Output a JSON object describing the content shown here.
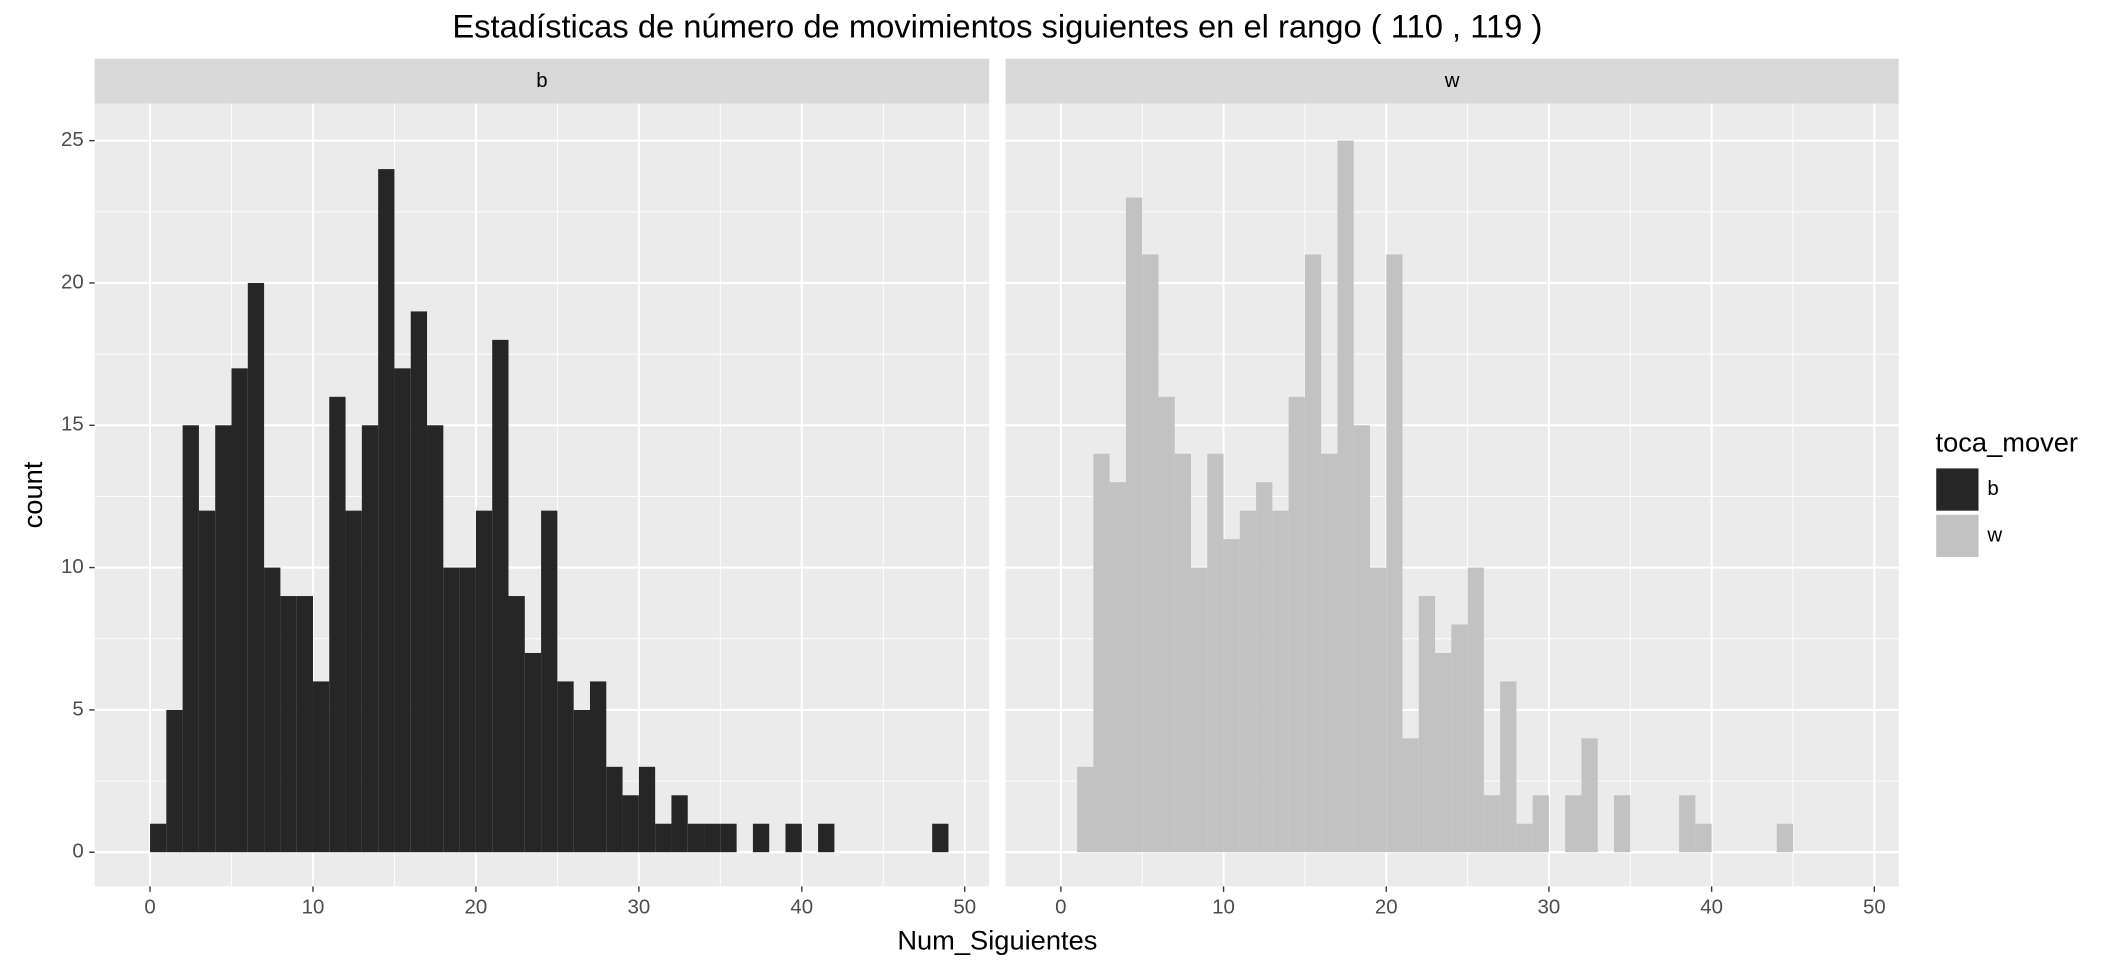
{
  "chart_data": {
    "type": "histogram",
    "title": "Estadísticas de número de movimientos siguientes en el rango ( 110 , 119 )",
    "x_label": "Num_Siguientes",
    "y_label": "count",
    "legend_title": "toca_mover",
    "bins": [
      0,
      1,
      2,
      3,
      4,
      5,
      6,
      7,
      8,
      9,
      10,
      11,
      12,
      13,
      14,
      15,
      16,
      17,
      18,
      19,
      20,
      21,
      22,
      23,
      24,
      25,
      26,
      27,
      28,
      29,
      30,
      31,
      32,
      33,
      34,
      35,
      36,
      37,
      38,
      39,
      40,
      41,
      42,
      43,
      44,
      45,
      46,
      47,
      48,
      49
    ],
    "series": [
      {
        "name": "b",
        "color": "#262626",
        "values": [
          1,
          5,
          15,
          12,
          15,
          17,
          20,
          10,
          9,
          9,
          6,
          16,
          12,
          15,
          24,
          17,
          19,
          15,
          10,
          10,
          12,
          18,
          9,
          7,
          12,
          6,
          5,
          6,
          3,
          2,
          3,
          1,
          2,
          1,
          1,
          1,
          0,
          1,
          0,
          1,
          0,
          1,
          0,
          0,
          0,
          0,
          0,
          0,
          1
        ]
      },
      {
        "name": "w",
        "color": "#c2c2c2",
        "values": [
          0,
          3,
          14,
          13,
          23,
          21,
          16,
          14,
          10,
          14,
          11,
          12,
          13,
          12,
          16,
          21,
          14,
          25,
          15,
          10,
          21,
          4,
          9,
          7,
          8,
          10,
          2,
          6,
          1,
          2,
          0,
          2,
          4,
          0,
          2,
          0,
          0,
          0,
          2,
          1,
          0,
          0,
          0,
          0,
          1,
          0,
          0,
          0,
          0
        ]
      }
    ],
    "xlim": [
      -3.4,
      51.5
    ],
    "ylim": [
      -1.2,
      26.3
    ],
    "xticks": [
      0,
      10,
      20,
      30,
      40,
      50
    ],
    "yticks": [
      0,
      5,
      10,
      15,
      20,
      25
    ],
    "grid": true
  }
}
